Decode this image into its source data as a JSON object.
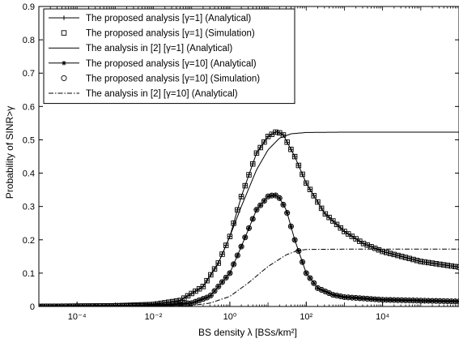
{
  "chart_data": {
    "type": "line",
    "title": "",
    "xlabel": "BS density λ  [BSs/km²]",
    "ylabel": "Probability of SINR>γ",
    "xscale": "log",
    "xlim": [
      1e-05,
      1000000
    ],
    "ylim": [
      0,
      0.9
    ],
    "xticks": [
      0.0001,
      0.01,
      1,
      100,
      10000
    ],
    "xtick_labels": [
      "10⁻⁴",
      "10⁻²",
      "10⁰",
      "10²",
      "10⁴"
    ],
    "yticks": [
      0,
      0.1,
      0.2,
      0.3,
      0.4,
      0.5,
      0.6,
      0.7,
      0.8,
      0.9
    ],
    "ytick_labels": [
      "0",
      "0.1",
      "0.2",
      "0.3",
      "0.4",
      "0.5",
      "0.6",
      "0.7",
      "0.8",
      "0.9"
    ],
    "grid": false,
    "legend_position": "top-left",
    "series": [
      {
        "name": "The proposed analysis [γ=1] (Analytical)",
        "marker": "plus",
        "line": "solid",
        "points": [
          [
            1e-05,
            0.0
          ],
          [
            0.001,
            0.002
          ],
          [
            0.01,
            0.006
          ],
          [
            0.05,
            0.018
          ],
          [
            0.2,
            0.06
          ],
          [
            0.5,
            0.13
          ],
          [
            1,
            0.21
          ],
          [
            2,
            0.33
          ],
          [
            5,
            0.46
          ],
          [
            10,
            0.51
          ],
          [
            17,
            0.525
          ],
          [
            25,
            0.515
          ],
          [
            50,
            0.45
          ],
          [
            100,
            0.37
          ],
          [
            300,
            0.28
          ],
          [
            1000,
            0.225
          ],
          [
            3000,
            0.19
          ],
          [
            10000,
            0.165
          ],
          [
            100000,
            0.135
          ],
          [
            1000000,
            0.118
          ]
        ]
      },
      {
        "name": "The proposed analysis [γ=1] (Simulation)",
        "marker": "square",
        "line": "none",
        "points": [
          [
            1e-05,
            0.0
          ],
          [
            0.001,
            0.002
          ],
          [
            0.01,
            0.006
          ],
          [
            0.05,
            0.018
          ],
          [
            0.2,
            0.06
          ],
          [
            0.5,
            0.13
          ],
          [
            1,
            0.21
          ],
          [
            2,
            0.33
          ],
          [
            5,
            0.46
          ],
          [
            10,
            0.51
          ],
          [
            17,
            0.525
          ],
          [
            25,
            0.515
          ],
          [
            50,
            0.45
          ],
          [
            100,
            0.37
          ],
          [
            300,
            0.28
          ],
          [
            1000,
            0.225
          ],
          [
            3000,
            0.19
          ],
          [
            10000,
            0.165
          ],
          [
            100000,
            0.135
          ],
          [
            1000000,
            0.118
          ]
        ]
      },
      {
        "name": "The analysis in [2] [γ=1] (Analytical)",
        "marker": "none",
        "line": "solid",
        "points": [
          [
            1e-05,
            0.0
          ],
          [
            0.001,
            0.002
          ],
          [
            0.01,
            0.006
          ],
          [
            0.05,
            0.018
          ],
          [
            0.2,
            0.06
          ],
          [
            0.5,
            0.13
          ],
          [
            1,
            0.21
          ],
          [
            2,
            0.3
          ],
          [
            5,
            0.41
          ],
          [
            10,
            0.47
          ],
          [
            20,
            0.505
          ],
          [
            40,
            0.518
          ],
          [
            100,
            0.522
          ],
          [
            1000,
            0.523
          ],
          [
            1000000,
            0.523
          ]
        ]
      },
      {
        "name": "The proposed analysis [γ=10] (Analytical)",
        "marker": "asterisk",
        "line": "solid",
        "points": [
          [
            1e-05,
            0.0
          ],
          [
            0.01,
            0.002
          ],
          [
            0.1,
            0.01
          ],
          [
            0.3,
            0.03
          ],
          [
            1,
            0.1
          ],
          [
            2,
            0.18
          ],
          [
            5,
            0.29
          ],
          [
            10,
            0.33
          ],
          [
            15,
            0.335
          ],
          [
            20,
            0.325
          ],
          [
            30,
            0.29
          ],
          [
            50,
            0.2
          ],
          [
            100,
            0.1
          ],
          [
            200,
            0.055
          ],
          [
            500,
            0.035
          ],
          [
            1000,
            0.028
          ],
          [
            10000,
            0.02
          ],
          [
            1000000,
            0.015
          ]
        ]
      },
      {
        "name": "The proposed analysis [γ=10] (Simulation)",
        "marker": "circle",
        "line": "none",
        "points": [
          [
            1e-05,
            0.0
          ],
          [
            0.01,
            0.002
          ],
          [
            0.1,
            0.01
          ],
          [
            0.3,
            0.03
          ],
          [
            1,
            0.1
          ],
          [
            2,
            0.18
          ],
          [
            5,
            0.29
          ],
          [
            10,
            0.33
          ],
          [
            15,
            0.335
          ],
          [
            20,
            0.325
          ],
          [
            30,
            0.29
          ],
          [
            50,
            0.2
          ],
          [
            100,
            0.1
          ],
          [
            200,
            0.055
          ],
          [
            500,
            0.035
          ],
          [
            1000,
            0.028
          ],
          [
            10000,
            0.02
          ],
          [
            1000000,
            0.015
          ]
        ]
      },
      {
        "name": "The analysis in [2] [γ=10] (Analytical)",
        "marker": "none",
        "line": "dashdot",
        "points": [
          [
            1e-05,
            0.0
          ],
          [
            0.1,
            0.003
          ],
          [
            0.3,
            0.01
          ],
          [
            1,
            0.03
          ],
          [
            3,
            0.07
          ],
          [
            10,
            0.12
          ],
          [
            30,
            0.155
          ],
          [
            60,
            0.168
          ],
          [
            100,
            0.171
          ],
          [
            1000,
            0.172
          ],
          [
            1000000,
            0.172
          ]
        ]
      }
    ]
  }
}
